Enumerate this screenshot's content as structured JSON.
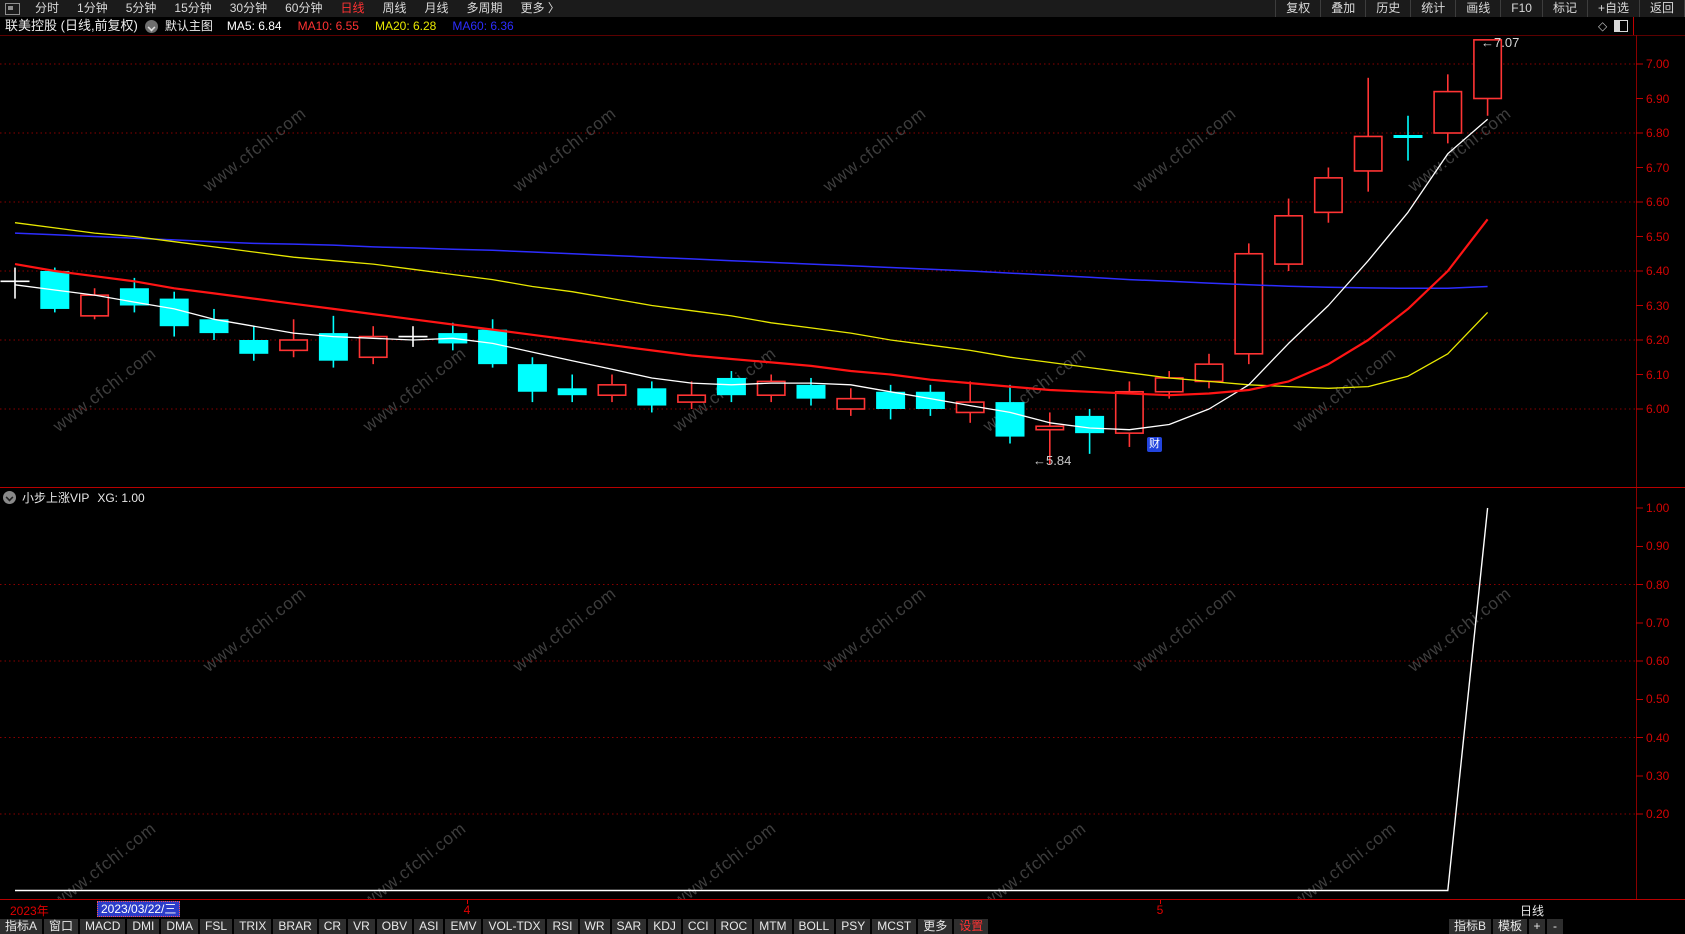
{
  "topbar": {
    "left_items": [
      {
        "label": "分时",
        "active": false
      },
      {
        "label": "1分钟",
        "active": false
      },
      {
        "label": "5分钟",
        "active": false
      },
      {
        "label": "15分钟",
        "active": false
      },
      {
        "label": "30分钟",
        "active": false
      },
      {
        "label": "60分钟",
        "active": false
      },
      {
        "label": "日线",
        "active": true
      },
      {
        "label": "周线",
        "active": false
      },
      {
        "label": "月线",
        "active": false
      },
      {
        "label": "多周期",
        "active": false
      },
      {
        "label": "更多 〉",
        "active": false
      }
    ],
    "right_items": [
      "复权",
      "叠加",
      "历史",
      "统计",
      "画线",
      "F10",
      "标记",
      "+自选",
      "返回"
    ]
  },
  "infobar": {
    "title": "联美控股 (日线,前复权)",
    "view_label": "默认主图",
    "ma_items": [
      {
        "label": "MA5: 6.84",
        "color": "#ffffff"
      },
      {
        "label": "MA10: 6.55",
        "color": "#ff3232"
      },
      {
        "label": "MA20: 6.28",
        "color": "#e8e800"
      },
      {
        "label": "MA60: 6.36",
        "color": "#2d2dff"
      }
    ]
  },
  "watermark": {
    "text": "www.cfchi.com"
  },
  "main_chart": {
    "y_axis_labels": [
      "7.00",
      "6.90",
      "6.80",
      "6.70",
      "6.60",
      "6.50",
      "6.40",
      "6.30",
      "6.20",
      "6.10",
      "6.00"
    ],
    "grid_levels": [
      7.0,
      6.8,
      6.6,
      6.4,
      6.2,
      6.0
    ],
    "annotation_high": "←7.07",
    "annotation_low": "←5.84",
    "badge": "财"
  },
  "sub_chart": {
    "title": "小步上涨VIP",
    "value_label": "XG: 1.00",
    "y_axis_labels": [
      "1.00",
      "0.90",
      "0.80",
      "0.70",
      "0.60",
      "0.50",
      "0.40",
      "0.30",
      "0.20"
    ],
    "grid_levels": [
      0.8,
      0.6,
      0.4,
      0.2
    ]
  },
  "date_axis": {
    "year": "2023年",
    "cursor_date": "2023/03/22/三",
    "month_ticks": [
      {
        "label": "4",
        "x": 467
      },
      {
        "label": "5",
        "x": 1160
      }
    ],
    "period": "日线"
  },
  "indicator_bar": {
    "left_items": [
      {
        "label": "指标A"
      },
      {
        "label": "窗口"
      },
      {
        "label": "MACD"
      },
      {
        "label": "DMI"
      },
      {
        "label": "DMA"
      },
      {
        "label": "FSL"
      },
      {
        "label": "TRIX"
      },
      {
        "label": "BRAR"
      },
      {
        "label": "CR"
      },
      {
        "label": "VR"
      },
      {
        "label": "OBV"
      },
      {
        "label": "ASI"
      },
      {
        "label": "EMV"
      },
      {
        "label": "VOL-TDX"
      },
      {
        "label": "RSI"
      },
      {
        "label": "WR"
      },
      {
        "label": "SAR"
      },
      {
        "label": "KDJ"
      },
      {
        "label": "CCI"
      },
      {
        "label": "ROC"
      },
      {
        "label": "MTM"
      },
      {
        "label": "BOLL"
      },
      {
        "label": "PSY"
      },
      {
        "label": "MCST"
      },
      {
        "label": "更多"
      },
      {
        "label": "设置",
        "accent": true
      }
    ],
    "right_items": [
      {
        "label": "指标B"
      },
      {
        "label": "模板"
      }
    ],
    "zoom_in": "+",
    "zoom_out": "-"
  },
  "colors": {
    "up": "#ff3434",
    "down": "#00ffff",
    "doji_white": "#ffffff",
    "doji_cyan": "#00ffff",
    "ma5": "#ffffff",
    "ma10": "#ff1414",
    "ma20": "#e8e800",
    "ma60": "#2d2dff",
    "axis_text": "#d40404",
    "grid": "#8a0000",
    "frame": "#b80000",
    "accent": "#ff3232"
  },
  "chart_data": {
    "type": "candlestick",
    "symbol": "联美控股",
    "period": "日线",
    "adjust": "前复权",
    "first_visible_date": "2023/03/22/三",
    "title": "联美控股 (日线,前复权)",
    "price_axis": {
      "ticks": [
        7.0,
        6.9,
        6.8,
        6.7,
        6.6,
        6.5,
        6.4,
        6.3,
        6.2,
        6.1,
        6.0
      ],
      "ylim": [
        5.77,
        7.08
      ]
    },
    "high_annotation": {
      "text": "←7.07",
      "price": 7.07,
      "candle_index": 37
    },
    "low_annotation": {
      "text": "←5.84",
      "price": 5.84,
      "candle_index": 26
    },
    "candles": [
      {
        "o": 6.37,
        "h": 6.41,
        "l": 6.32,
        "c": 6.37,
        "d": "doji-white"
      },
      {
        "o": 6.4,
        "h": 6.41,
        "l": 6.28,
        "c": 6.29,
        "d": "down"
      },
      {
        "o": 6.27,
        "h": 6.35,
        "l": 6.26,
        "c": 6.33,
        "d": "up"
      },
      {
        "o": 6.35,
        "h": 6.38,
        "l": 6.28,
        "c": 6.3,
        "d": "down"
      },
      {
        "o": 6.32,
        "h": 6.34,
        "l": 6.21,
        "c": 6.24,
        "d": "down"
      },
      {
        "o": 6.26,
        "h": 6.29,
        "l": 6.2,
        "c": 6.22,
        "d": "down"
      },
      {
        "o": 6.2,
        "h": 6.24,
        "l": 6.14,
        "c": 6.16,
        "d": "down"
      },
      {
        "o": 6.17,
        "h": 6.26,
        "l": 6.15,
        "c": 6.2,
        "d": "up"
      },
      {
        "o": 6.22,
        "h": 6.27,
        "l": 6.12,
        "c": 6.14,
        "d": "down"
      },
      {
        "o": 6.15,
        "h": 6.24,
        "l": 6.13,
        "c": 6.21,
        "d": "up"
      },
      {
        "o": 6.21,
        "h": 6.24,
        "l": 6.18,
        "c": 6.21,
        "d": "doji-white"
      },
      {
        "o": 6.22,
        "h": 6.25,
        "l": 6.17,
        "c": 6.19,
        "d": "down"
      },
      {
        "o": 6.23,
        "h": 6.26,
        "l": 6.12,
        "c": 6.13,
        "d": "down"
      },
      {
        "o": 6.13,
        "h": 6.15,
        "l": 6.02,
        "c": 6.05,
        "d": "down"
      },
      {
        "o": 6.06,
        "h": 6.1,
        "l": 6.02,
        "c": 6.04,
        "d": "down"
      },
      {
        "o": 6.04,
        "h": 6.1,
        "l": 6.02,
        "c": 6.07,
        "d": "up"
      },
      {
        "o": 6.06,
        "h": 6.08,
        "l": 5.99,
        "c": 6.01,
        "d": "down"
      },
      {
        "o": 6.02,
        "h": 6.08,
        "l": 6.0,
        "c": 6.04,
        "d": "up"
      },
      {
        "o": 6.09,
        "h": 6.11,
        "l": 6.02,
        "c": 6.04,
        "d": "down"
      },
      {
        "o": 6.04,
        "h": 6.1,
        "l": 6.02,
        "c": 6.08,
        "d": "up"
      },
      {
        "o": 6.07,
        "h": 6.09,
        "l": 6.01,
        "c": 6.03,
        "d": "down"
      },
      {
        "o": 6.0,
        "h": 6.06,
        "l": 5.98,
        "c": 6.03,
        "d": "up"
      },
      {
        "o": 6.05,
        "h": 6.07,
        "l": 5.97,
        "c": 6.0,
        "d": "down"
      },
      {
        "o": 6.05,
        "h": 6.07,
        "l": 5.98,
        "c": 6.0,
        "d": "down"
      },
      {
        "o": 5.99,
        "h": 6.08,
        "l": 5.96,
        "c": 6.02,
        "d": "up"
      },
      {
        "o": 6.02,
        "h": 6.07,
        "l": 5.9,
        "c": 5.92,
        "d": "down"
      },
      {
        "o": 5.94,
        "h": 5.99,
        "l": 5.84,
        "c": 5.95,
        "d": "up"
      },
      {
        "o": 5.98,
        "h": 6.0,
        "l": 5.87,
        "c": 5.93,
        "d": "down"
      },
      {
        "o": 5.93,
        "h": 6.08,
        "l": 5.89,
        "c": 6.05,
        "d": "up"
      },
      {
        "o": 6.05,
        "h": 6.11,
        "l": 6.03,
        "c": 6.09,
        "d": "up"
      },
      {
        "o": 6.08,
        "h": 6.16,
        "l": 6.06,
        "c": 6.13,
        "d": "up"
      },
      {
        "o": 6.16,
        "h": 6.48,
        "l": 6.13,
        "c": 6.45,
        "d": "up"
      },
      {
        "o": 6.42,
        "h": 6.61,
        "l": 6.4,
        "c": 6.56,
        "d": "up"
      },
      {
        "o": 6.57,
        "h": 6.7,
        "l": 6.54,
        "c": 6.67,
        "d": "up"
      },
      {
        "o": 6.69,
        "h": 6.96,
        "l": 6.63,
        "c": 6.79,
        "d": "up"
      },
      {
        "o": 6.79,
        "h": 6.85,
        "l": 6.72,
        "c": 6.79,
        "d": "doji-cyan"
      },
      {
        "o": 6.8,
        "h": 6.97,
        "l": 6.77,
        "c": 6.92,
        "d": "up"
      },
      {
        "o": 6.9,
        "h": 7.07,
        "l": 6.85,
        "c": 7.07,
        "d": "up"
      }
    ],
    "ma_series": [
      {
        "name": "MA5",
        "last_label": "MA5: 6.84",
        "color": "#ffffff",
        "width": 1.3,
        "values": [
          6.36,
          6.345,
          6.33,
          6.31,
          6.29,
          6.26,
          6.24,
          6.22,
          6.21,
          6.205,
          6.2,
          6.205,
          6.19,
          6.165,
          6.14,
          6.115,
          6.09,
          6.075,
          6.07,
          6.075,
          6.075,
          6.07,
          6.05,
          6.03,
          6.01,
          5.99,
          5.96,
          5.945,
          5.94,
          5.955,
          6.0,
          6.07,
          6.19,
          6.3,
          6.43,
          6.57,
          6.74,
          6.84
        ]
      },
      {
        "name": "MA10",
        "last_label": "MA10: 6.55",
        "color": "#ff1414",
        "width": 2.2,
        "values": [
          6.42,
          6.4,
          6.385,
          6.37,
          6.35,
          6.335,
          6.32,
          6.305,
          6.29,
          6.275,
          6.26,
          6.245,
          6.23,
          6.215,
          6.2,
          6.185,
          6.17,
          6.155,
          6.145,
          6.135,
          6.125,
          6.11,
          6.1,
          6.085,
          6.075,
          6.065,
          6.055,
          6.05,
          6.045,
          6.04,
          6.045,
          6.055,
          6.08,
          6.13,
          6.2,
          6.29,
          6.4,
          6.55
        ]
      },
      {
        "name": "MA20",
        "last_label": "MA20: 6.28",
        "color": "#e8e800",
        "width": 1.3,
        "values": [
          6.54,
          6.525,
          6.51,
          6.5,
          6.485,
          6.47,
          6.455,
          6.44,
          6.43,
          6.42,
          6.405,
          6.39,
          6.375,
          6.355,
          6.34,
          6.32,
          6.3,
          6.285,
          6.27,
          6.25,
          6.235,
          6.22,
          6.2,
          6.185,
          6.17,
          6.15,
          6.135,
          6.12,
          6.105,
          6.09,
          6.08,
          6.07,
          6.065,
          6.06,
          6.065,
          6.095,
          6.16,
          6.28
        ]
      },
      {
        "name": "MA60",
        "last_label": "MA60: 6.36",
        "color": "#2d2dff",
        "width": 1.5,
        "values": [
          6.51,
          6.505,
          6.5,
          6.495,
          6.49,
          6.485,
          6.48,
          6.478,
          6.475,
          6.47,
          6.467,
          6.463,
          6.46,
          6.455,
          6.45,
          6.445,
          6.44,
          6.435,
          6.43,
          6.425,
          6.42,
          6.415,
          6.41,
          6.405,
          6.4,
          6.394,
          6.388,
          6.382,
          6.375,
          6.37,
          6.365,
          6.36,
          6.356,
          6.353,
          6.351,
          6.35,
          6.35,
          6.355
        ]
      }
    ],
    "sub_indicator": {
      "name": "小步上涨VIP",
      "field": "XG",
      "last_value": 1.0,
      "color": "#ffffff",
      "axis_ticks": [
        1.0,
        0.9,
        0.8,
        0.7,
        0.6,
        0.5,
        0.4,
        0.3,
        0.2
      ],
      "values": [
        0,
        0,
        0,
        0,
        0,
        0,
        0,
        0,
        0,
        0,
        0,
        0,
        0,
        0,
        0,
        0,
        0,
        0,
        0,
        0,
        0,
        0,
        0,
        0,
        0,
        0,
        0,
        0,
        0,
        0,
        0,
        0,
        0,
        0,
        0,
        0,
        0,
        1.0
      ]
    }
  }
}
